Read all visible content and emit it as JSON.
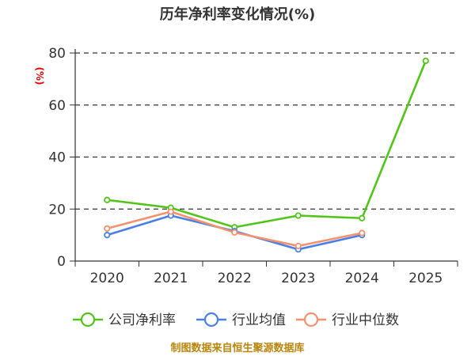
{
  "chart_data": {
    "type": "line",
    "title": "历年净利率变化情况(%)",
    "ylabel": "(%)",
    "categories": [
      "2020",
      "2021",
      "2022",
      "2023",
      "2024",
      "2025"
    ],
    "y_ticks": [
      "0",
      "20",
      "40",
      "60",
      "80"
    ],
    "ylim": [
      0,
      80
    ],
    "grid": "horizontal-dashed",
    "legend_position": "bottom",
    "series": [
      {
        "name": "公司净利率",
        "color": "#52c41a",
        "values": [
          23.5,
          20.5,
          13.0,
          17.5,
          16.5,
          77.0
        ]
      },
      {
        "name": "行业均值",
        "color": "#4a7ee8",
        "values": [
          10.0,
          17.5,
          11.5,
          4.5,
          10.0,
          null
        ]
      },
      {
        "name": "行业中位数",
        "color": "#f4926e",
        "values": [
          12.5,
          19.0,
          11.0,
          5.8,
          10.8,
          null
        ]
      }
    ],
    "source": "制图数据来自恒生聚源数据库"
  }
}
